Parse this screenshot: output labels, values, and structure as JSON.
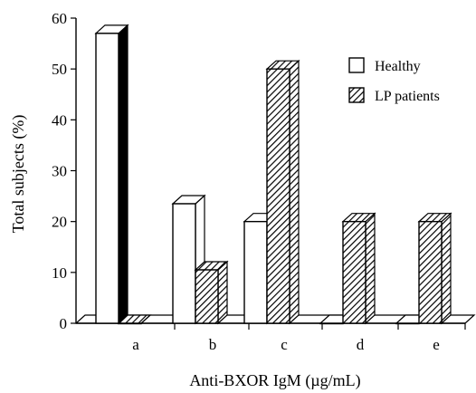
{
  "chart_data": {
    "type": "bar",
    "categories": [
      "a",
      "b",
      "c",
      "d",
      "e"
    ],
    "series": [
      {
        "name": "Healthy",
        "values": [
          57,
          23.5,
          20,
          0,
          0
        ]
      },
      {
        "name": "LP patients",
        "values": [
          0,
          10.5,
          50,
          20,
          20
        ]
      }
    ],
    "xlabel": "Anti-BXOR IgM (µg/mL)",
    "ylabel": "Total subjects (%)",
    "ylim": [
      0,
      60
    ],
    "yticks": [
      "0",
      "10",
      "20",
      "30",
      "40",
      "50",
      "60"
    ],
    "grid": false,
    "legend_position": "top-right",
    "style": "3d-bar",
    "colors": {
      "healthy_fill": "#ffffff",
      "patients_fill": "hatched",
      "stroke": "#000000"
    }
  }
}
